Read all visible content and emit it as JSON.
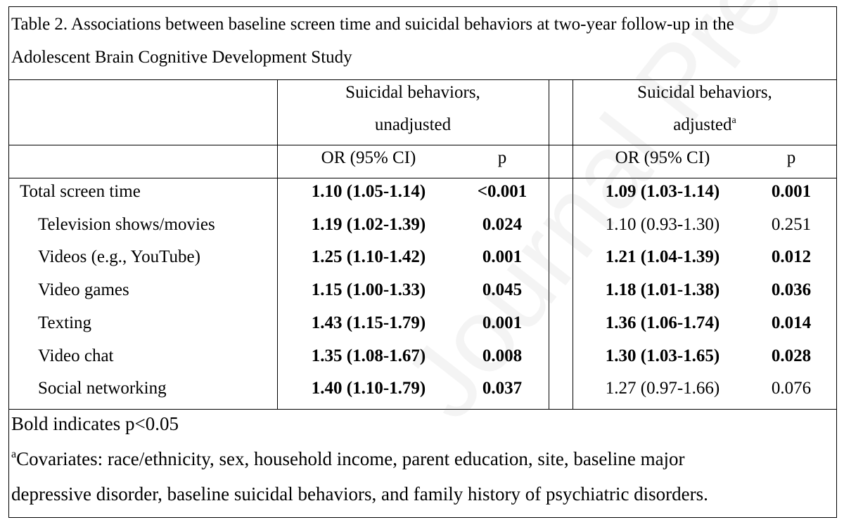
{
  "table": {
    "title_line1": "Table 2. Associations between baseline screen time and suicidal behaviors at two-year follow-up in the",
    "title_line2": "Adolescent Brain Cognitive Development Study",
    "group_unadjusted": {
      "line1": "Suicidal behaviors,",
      "line2": "unadjusted"
    },
    "group_adjusted": {
      "line1": "Suicidal behaviors,",
      "line2": "adjusted",
      "superscript": "a"
    },
    "col_or": "OR (95% CI)",
    "col_p": "p",
    "rows": [
      {
        "label": "Total screen time",
        "u_or": "1.10 (1.05-1.14)",
        "u_p": "<0.001",
        "a_or": "1.09 (1.03-1.14)",
        "a_p": "0.001",
        "u_bold": true,
        "a_bold": true
      },
      {
        "label": "Television shows/movies",
        "u_or": "1.19 (1.02-1.39)",
        "u_p": "0.024",
        "a_or": "1.10 (0.93-1.30)",
        "a_p": "0.251",
        "u_bold": true,
        "a_bold": false
      },
      {
        "label": "Videos (e.g., YouTube)",
        "u_or": "1.25 (1.10-1.42)",
        "u_p": "0.001",
        "a_or": "1.21 (1.04-1.39)",
        "a_p": "0.012",
        "u_bold": true,
        "a_bold": true
      },
      {
        "label": "Video games",
        "u_or": "1.15 (1.00-1.33)",
        "u_p": "0.045",
        "a_or": "1.18 (1.01-1.38)",
        "a_p": "0.036",
        "u_bold": true,
        "a_bold": true
      },
      {
        "label": "Texting",
        "u_or": "1.43 (1.15-1.79)",
        "u_p": "0.001",
        "a_or": "1.36 (1.06-1.74)",
        "a_p": "0.014",
        "u_bold": true,
        "a_bold": true
      },
      {
        "label": "Video chat",
        "u_or": "1.35 (1.08-1.67)",
        "u_p": "0.008",
        "a_or": "1.30 (1.03-1.65)",
        "a_p": "0.028",
        "u_bold": true,
        "a_bold": true
      },
      {
        "label": "Social networking",
        "u_or": "1.40 (1.10-1.79)",
        "u_p": "0.037",
        "a_or": "1.27 (0.97-1.66)",
        "a_p": "0.076",
        "u_bold": true,
        "a_bold": false
      }
    ],
    "footnote_bold": "Bold indicates p<0.05",
    "footnote_a_marker": "a",
    "footnote_a_line1": "Covariates: race/ethnicity, sex, household income, parent education, site, baseline major",
    "footnote_a_line2": "depressive disorder, baseline suicidal behaviors, and family history of psychiatric disorders."
  },
  "watermark": "Journal Pre-proof"
}
